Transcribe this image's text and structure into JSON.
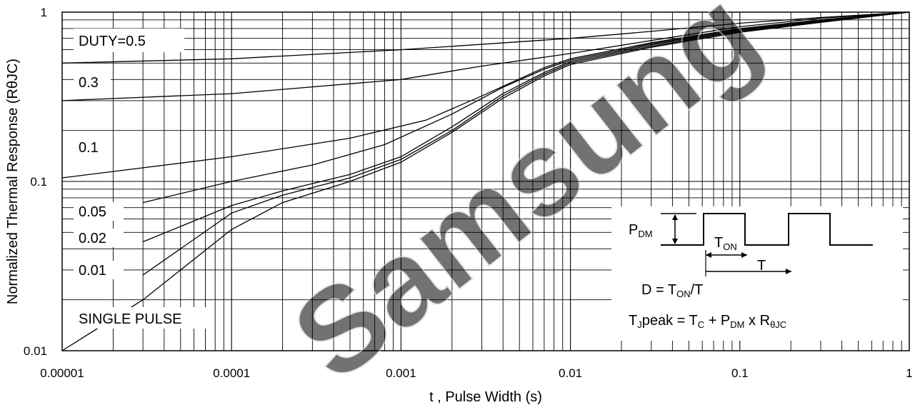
{
  "watermark": "Samsung",
  "chart_data": {
    "type": "line",
    "xscale": "log",
    "yscale": "log",
    "xlabel": "t , Pulse Width (s)",
    "ylabel": "Normalized Thermal Response (RθJC)",
    "xlim": [
      1e-05,
      1
    ],
    "ylim": [
      0.01,
      1
    ],
    "x_ticks": [
      "0.00001",
      "0.0001",
      "0.001",
      "0.01",
      "0.1",
      "1"
    ],
    "y_ticks": [
      "0.01",
      "0.1",
      "1"
    ],
    "grid": true,
    "series": [
      {
        "name": "DUTY=0.5",
        "x": [
          1e-05,
          0.0001,
          0.001,
          0.01,
          0.03,
          0.1,
          0.3,
          1
        ],
        "y": [
          0.5,
          0.53,
          0.6,
          0.7,
          0.77,
          0.86,
          0.93,
          1.0
        ]
      },
      {
        "name": "0.3",
        "x": [
          1e-05,
          0.0001,
          0.001,
          0.003,
          0.01,
          0.03,
          0.1,
          0.3,
          1
        ],
        "y": [
          0.3,
          0.33,
          0.4,
          0.48,
          0.57,
          0.68,
          0.82,
          0.92,
          1.0
        ]
      },
      {
        "name": "0.1",
        "x": [
          1e-05,
          0.0001,
          0.0005,
          0.0014,
          0.003,
          0.007,
          0.01,
          0.03,
          0.1,
          0.3,
          1
        ],
        "y": [
          0.105,
          0.14,
          0.18,
          0.23,
          0.32,
          0.47,
          0.53,
          0.66,
          0.8,
          0.9,
          1.0
        ]
      },
      {
        "name": "0.05",
        "x": [
          3e-05,
          0.0001,
          0.0003,
          0.0008,
          0.002,
          0.004,
          0.007,
          0.01,
          0.03,
          0.1,
          0.3,
          1
        ],
        "y": [
          0.075,
          0.1,
          0.125,
          0.165,
          0.25,
          0.36,
          0.46,
          0.52,
          0.65,
          0.79,
          0.89,
          1.0
        ]
      },
      {
        "name": "0.02",
        "x": [
          3e-05,
          0.0001,
          0.0002,
          0.0005,
          0.001,
          0.002,
          0.004,
          0.007,
          0.01,
          0.03,
          0.1,
          0.3,
          1
        ],
        "y": [
          0.044,
          0.072,
          0.088,
          0.11,
          0.14,
          0.21,
          0.33,
          0.44,
          0.51,
          0.64,
          0.78,
          0.88,
          1.0
        ]
      },
      {
        "name": "0.01",
        "x": [
          3e-05,
          0.0001,
          0.0002,
          0.0005,
          0.001,
          0.002,
          0.004,
          0.007,
          0.01,
          0.03,
          0.1,
          0.3,
          1
        ],
        "y": [
          0.028,
          0.065,
          0.083,
          0.105,
          0.135,
          0.2,
          0.32,
          0.43,
          0.5,
          0.63,
          0.77,
          0.88,
          1.0
        ]
      },
      {
        "name": "SINGLE PULSE",
        "x": [
          1e-05,
          3e-05,
          0.0001,
          0.0002,
          0.0005,
          0.001,
          0.002,
          0.004,
          0.007,
          0.01,
          0.03,
          0.1,
          0.3,
          1
        ],
        "y": [
          0.01,
          0.02,
          0.052,
          0.075,
          0.1,
          0.13,
          0.195,
          0.31,
          0.42,
          0.49,
          0.62,
          0.76,
          0.87,
          1.0
        ]
      }
    ]
  },
  "inset": {
    "pdm_main": "P",
    "pdm_sub": "DM",
    "ton_main": "T",
    "ton_sub": "ON",
    "t_label": "T",
    "d_prefix": "D = T",
    "d_sub": "ON",
    "d_suffix": "/T",
    "tj_main": "T",
    "tj_sub": "J",
    "tj_text": "peak = T",
    "tc_sub": "C",
    "plus_p": " + P",
    "pdm2_sub": "DM",
    "x_r": " x R",
    "rthjc_sub": "θJC"
  }
}
